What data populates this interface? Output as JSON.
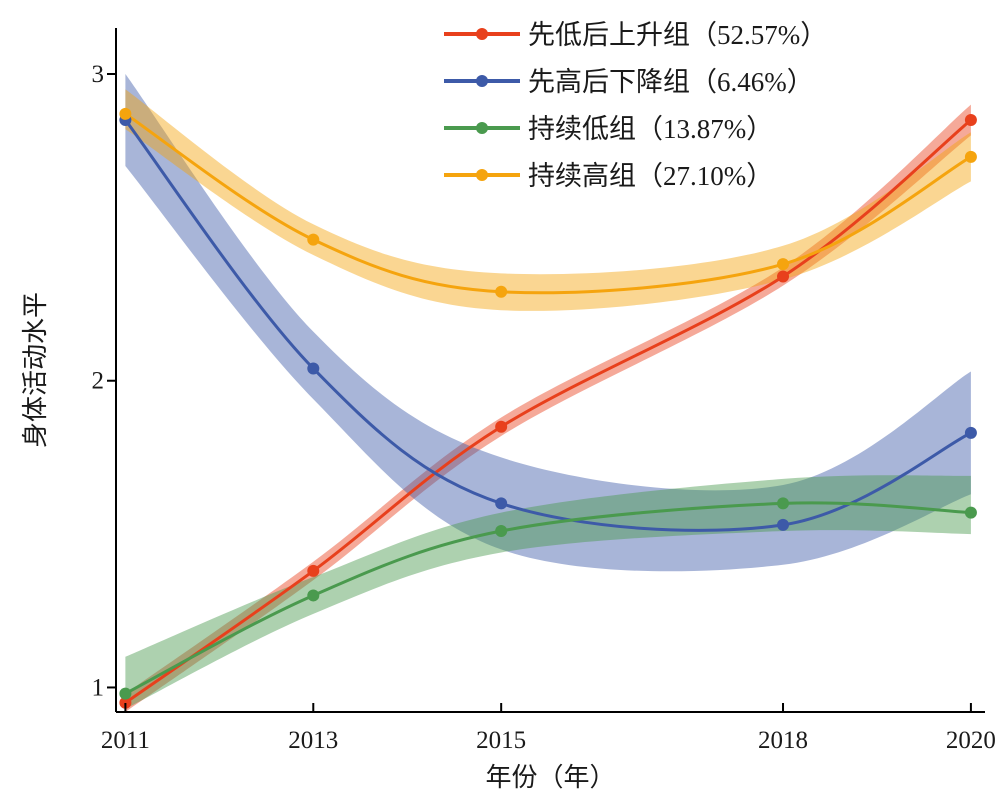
{
  "chart_data": {
    "type": "line",
    "title": "",
    "xlabel": "年份（年）",
    "ylabel": "身体活动水平",
    "categories": [
      "2011",
      "2013",
      "2015",
      "2018",
      "2020"
    ],
    "x": [
      2011,
      2013,
      2015,
      2018,
      2020
    ],
    "xlim": [
      2010.9,
      2020.15
    ],
    "ylim": [
      0.92,
      3.15
    ],
    "yticks": [
      1,
      2,
      3
    ],
    "ytick_labels": [
      "1",
      "2",
      "3"
    ],
    "grid": false,
    "legend_position": "top-right",
    "series": [
      {
        "name": "先低后上升组（52.57%）",
        "color": "#e8401c",
        "values": [
          0.95,
          1.38,
          1.85,
          2.34,
          2.85
        ],
        "ci_lower": [
          0.92,
          1.35,
          1.82,
          2.31,
          2.8
        ],
        "ci_upper": [
          0.98,
          1.41,
          1.88,
          2.37,
          2.9
        ]
      },
      {
        "name": "先高后下降组（6.46%）",
        "color": "#3d5aa8",
        "values": [
          2.85,
          2.04,
          1.6,
          1.53,
          1.83
        ],
        "ci_lower": [
          2.7,
          1.94,
          1.45,
          1.4,
          1.63
        ],
        "ci_upper": [
          3.0,
          2.16,
          1.75,
          1.66,
          2.03
        ]
      },
      {
        "name": "持续低组（13.87%）",
        "color": "#4a9a4e",
        "values": [
          0.98,
          1.3,
          1.51,
          1.6,
          1.57
        ],
        "ci_lower": [
          0.93,
          1.24,
          1.44,
          1.51,
          1.5
        ],
        "ci_upper": [
          1.1,
          1.36,
          1.57,
          1.68,
          1.69
        ]
      },
      {
        "name": "持续高组（27.10%）",
        "color": "#f5a40e",
        "values": [
          2.87,
          2.46,
          2.29,
          2.38,
          2.73
        ],
        "ci_lower": [
          2.82,
          2.41,
          2.23,
          2.33,
          2.65
        ],
        "ci_upper": [
          2.95,
          2.51,
          2.35,
          2.44,
          2.81
        ]
      }
    ]
  }
}
